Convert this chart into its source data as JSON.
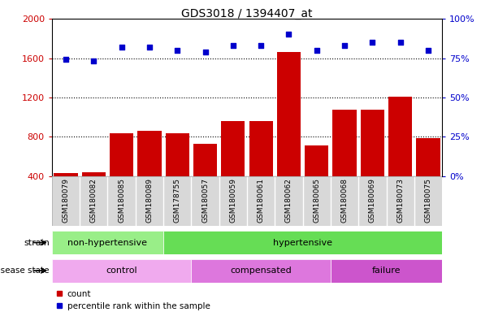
{
  "title": "GDS3018 / 1394407_at",
  "samples": [
    "GSM180079",
    "GSM180082",
    "GSM180085",
    "GSM180089",
    "GSM178755",
    "GSM180057",
    "GSM180059",
    "GSM180061",
    "GSM180062",
    "GSM180065",
    "GSM180068",
    "GSM180069",
    "GSM180073",
    "GSM180075"
  ],
  "counts": [
    430,
    440,
    840,
    860,
    840,
    730,
    960,
    960,
    1660,
    710,
    1080,
    1080,
    1210,
    790
  ],
  "percentiles": [
    74,
    73,
    82,
    82,
    80,
    79,
    83,
    83,
    90,
    80,
    83,
    85,
    85,
    80
  ],
  "bar_color": "#cc0000",
  "dot_color": "#0000cc",
  "ylim_left": [
    400,
    2000
  ],
  "ylim_right": [
    0,
    100
  ],
  "yticks_left": [
    400,
    800,
    1200,
    1600,
    2000
  ],
  "yticks_right": [
    0,
    25,
    50,
    75,
    100
  ],
  "strain_labels": [
    {
      "text": "non-hypertensive",
      "start": 0,
      "end": 4,
      "color": "#99ee88"
    },
    {
      "text": "hypertensive",
      "start": 4,
      "end": 14,
      "color": "#66dd55"
    }
  ],
  "disease_labels": [
    {
      "text": "control",
      "start": 0,
      "end": 5,
      "color": "#f0aaee"
    },
    {
      "text": "compensated",
      "start": 5,
      "end": 10,
      "color": "#dd77dd"
    },
    {
      "text": "failure",
      "start": 10,
      "end": 14,
      "color": "#cc55cc"
    }
  ],
  "legend_items": [
    {
      "label": "count",
      "color": "#cc0000"
    },
    {
      "label": "percentile rank within the sample",
      "color": "#0000cc"
    }
  ],
  "bg_color": "#ffffff",
  "tick_bg_color": "#d8d8d8",
  "tick_sep_color": "#ffffff"
}
